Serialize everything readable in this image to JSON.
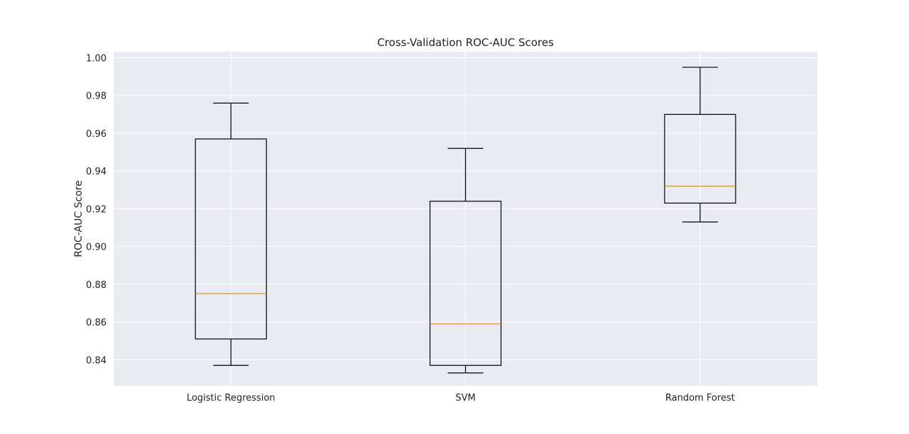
{
  "chart_data": {
    "type": "box",
    "title": "Cross-Validation ROC-AUC Scores",
    "xlabel": "",
    "ylabel": "ROC-AUC Score",
    "ylim": [
      0.8262,
      1.0032
    ],
    "yticks": [
      "0.84",
      "0.86",
      "0.88",
      "0.90",
      "0.92",
      "0.94",
      "0.96",
      "0.98",
      "1.00"
    ],
    "ytick_values": [
      0.84,
      0.86,
      0.88,
      0.9,
      0.92,
      0.94,
      0.96,
      0.98,
      1.0
    ],
    "grid": true,
    "categories": [
      "Logistic Regression",
      "SVM",
      "Random Forest"
    ],
    "series": [
      {
        "whisker_low": 0.837,
        "q1": 0.851,
        "median": 0.875,
        "q3": 0.957,
        "whisker_high": 0.976
      },
      {
        "whisker_low": 0.833,
        "q1": 0.837,
        "median": 0.859,
        "q3": 0.924,
        "whisker_high": 0.952
      },
      {
        "whisker_low": 0.913,
        "q1": 0.923,
        "median": 0.932,
        "q3": 0.97,
        "whisker_high": 0.995
      }
    ],
    "colors": {
      "plot_background": "#eaeaf2",
      "grid": "#ffffff",
      "box": "#000000",
      "median": "#c89a3a"
    }
  }
}
